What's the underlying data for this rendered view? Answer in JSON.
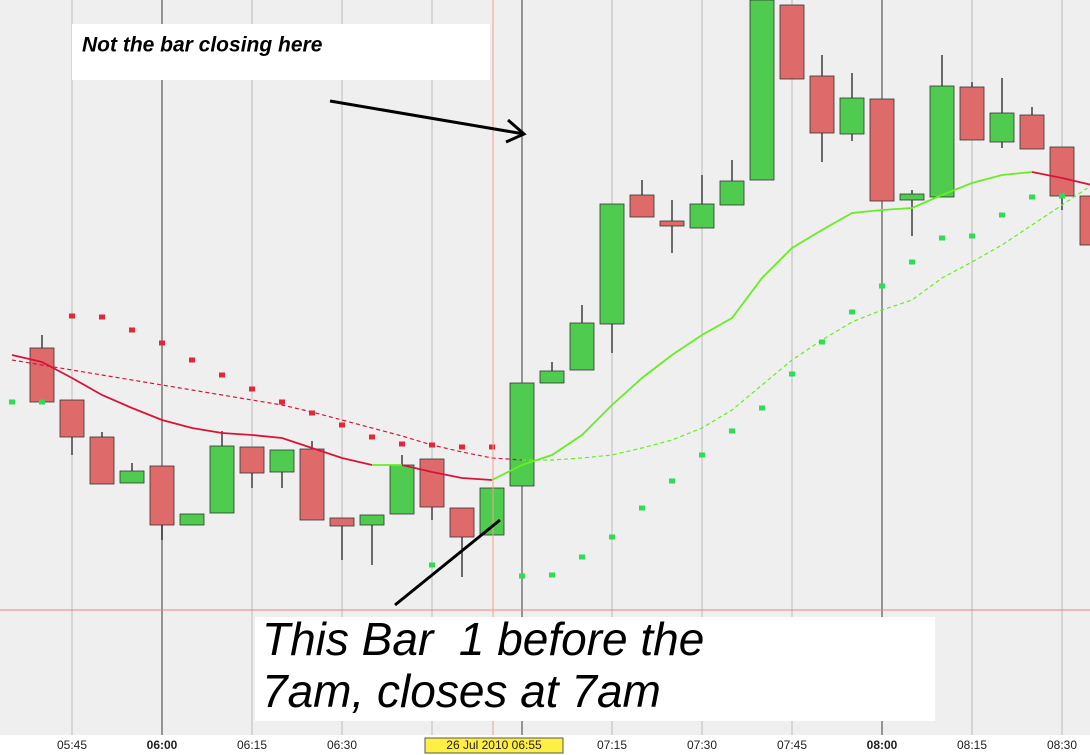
{
  "chart_data": {
    "type": "candlestick",
    "categories": [
      null,
      null,
      "05:45",
      null,
      null,
      "06:00",
      null,
      null,
      "06:15",
      null,
      null,
      "06:30",
      null,
      null,
      null,
      null,
      null,
      null,
      null,
      null,
      "07:15",
      null,
      null,
      "07:30",
      null,
      null,
      "07:45",
      null,
      null,
      "08:00",
      null,
      null,
      "08:15",
      null,
      null,
      "08:30",
      null
    ],
    "open": [
      null,
      387,
      335,
      298,
      252,
      269,
      210,
      222,
      288,
      263,
      286,
      217,
      210,
      221,
      276,
      227,
      200,
      249,
      352,
      365,
      411,
      540,
      514,
      507,
      530,
      555,
      730,
      659,
      601,
      636,
      535,
      538,
      648,
      593,
      620,
      588,
      539
    ],
    "high": [
      null,
      400,
      335,
      303,
      272,
      269,
      221,
      304,
      288,
      285,
      294,
      217,
      220,
      280,
      276,
      227,
      247,
      352,
      373,
      430,
      531,
      555,
      535,
      560,
      575,
      735,
      730,
      680,
      662,
      636,
      545,
      680,
      653,
      657,
      628,
      588,
      550
    ],
    "low": [
      null,
      333,
      280,
      251,
      252,
      195,
      210,
      222,
      247,
      247,
      215,
      175,
      170,
      221,
      215,
      158,
      200,
      249,
      352,
      365,
      382,
      518,
      482,
      507,
      530,
      555,
      656,
      573,
      594,
      534,
      499,
      538,
      595,
      587,
      586,
      525,
      490
    ],
    "close": [
      null,
      333,
      298,
      251,
      264,
      210,
      221,
      289,
      262,
      285,
      215,
      209,
      220,
      270,
      228,
      198,
      247,
      352,
      364,
      412,
      531,
      518,
      509,
      531,
      554,
      735,
      656,
      602,
      637,
      534,
      541,
      649,
      595,
      622,
      586,
      539,
      490
    ],
    "up_color": "#4fcc4f",
    "down_color": "#de6a6a",
    "lines": [
      {
        "style": "solid",
        "values": [
          380,
          373,
          357,
          340,
          327,
          315,
          307,
          302,
          300,
          297,
          287,
          277,
          270,
          270,
          263,
          257,
          255,
          270,
          280,
          300,
          330,
          357,
          380,
          400,
          417,
          457,
          487,
          505,
          522,
          525,
          527,
          540,
          552,
          560,
          563,
          557,
          550
        ],
        "colors": [
          "#d8143a",
          "#d8143a",
          "#d8143a",
          "#d8143a",
          "#d8143a",
          "#d8143a",
          "#d8143a",
          "#d8143a",
          "#d8143a",
          "#d8143a",
          "#d8143a",
          "#d8143a",
          "#66ee22",
          "#d8143a",
          "#d8143a",
          "#d8143a",
          "#66ee22",
          "#66ee22",
          "#66ee22",
          "#66ee22",
          "#66ee22",
          "#66ee22",
          "#66ee22",
          "#66ee22",
          "#66ee22",
          "#66ee22",
          "#66ee22",
          "#66ee22",
          "#66ee22",
          "#66ee22",
          "#66ee22",
          "#66ee22",
          "#66ee22",
          "#66ee22",
          "#d8143a",
          "#d8143a",
          "#d8143a"
        ]
      },
      {
        "style": "dashed",
        "values": [
          375,
          370,
          365,
          360,
          355,
          350,
          345,
          340,
          335,
          330,
          323,
          315,
          307,
          299,
          290,
          283,
          277,
          275,
          275,
          277,
          280,
          287,
          295,
          307,
          325,
          350,
          375,
          395,
          413,
          425,
          435,
          457,
          473,
          490,
          510,
          530,
          550
        ],
        "colors": [
          "#d8143a",
          "#d8143a",
          "#d8143a",
          "#d8143a",
          "#d8143a",
          "#d8143a",
          "#d8143a",
          "#d8143a",
          "#d8143a",
          "#d8143a",
          "#d8143a",
          "#d8143a",
          "#d8143a",
          "#d8143a",
          "#d8143a",
          "#d8143a",
          "#d8143a",
          "#66ee22",
          "#66ee22",
          "#66ee22",
          "#66ee22",
          "#66ee22",
          "#66ee22",
          "#66ee22",
          "#66ee22",
          "#66ee22",
          "#66ee22",
          "#66ee22",
          "#66ee22",
          "#66ee22",
          "#66ee22",
          "#66ee22",
          "#66ee22",
          "#66ee22",
          "#66ee22",
          "#66ee22",
          "#66ee22"
        ]
      }
    ],
    "dots": [
      {
        "color": "#e0283a",
        "values": [
          null,
          null,
          419,
          418,
          405,
          392,
          375,
          360,
          346,
          333,
          322,
          310,
          298,
          291,
          290,
          288,
          288,
          null,
          null,
          null,
          null,
          null,
          null,
          null,
          null,
          null,
          null,
          null,
          null,
          null,
          null,
          null,
          null,
          null,
          null,
          null,
          null
        ]
      },
      {
        "color": "#2fdc55",
        "values": [
          333,
          333,
          null,
          null,
          null,
          null,
          null,
          null,
          null,
          null,
          null,
          null,
          null,
          null,
          170,
          null,
          null,
          159,
          160,
          178,
          198,
          227,
          254,
          280,
          304,
          327,
          361,
          393,
          423,
          449,
          473,
          497,
          499,
          520,
          538,
          539,
          null
        ]
      }
    ],
    "hline": 125,
    "ylim": [
      0,
      735
    ],
    "cursor_label": "26 Jul 2010 06:55",
    "annotations": [
      "Not the bar closing here",
      "This Bar  1 before the",
      "7am, closes at 7am"
    ]
  }
}
